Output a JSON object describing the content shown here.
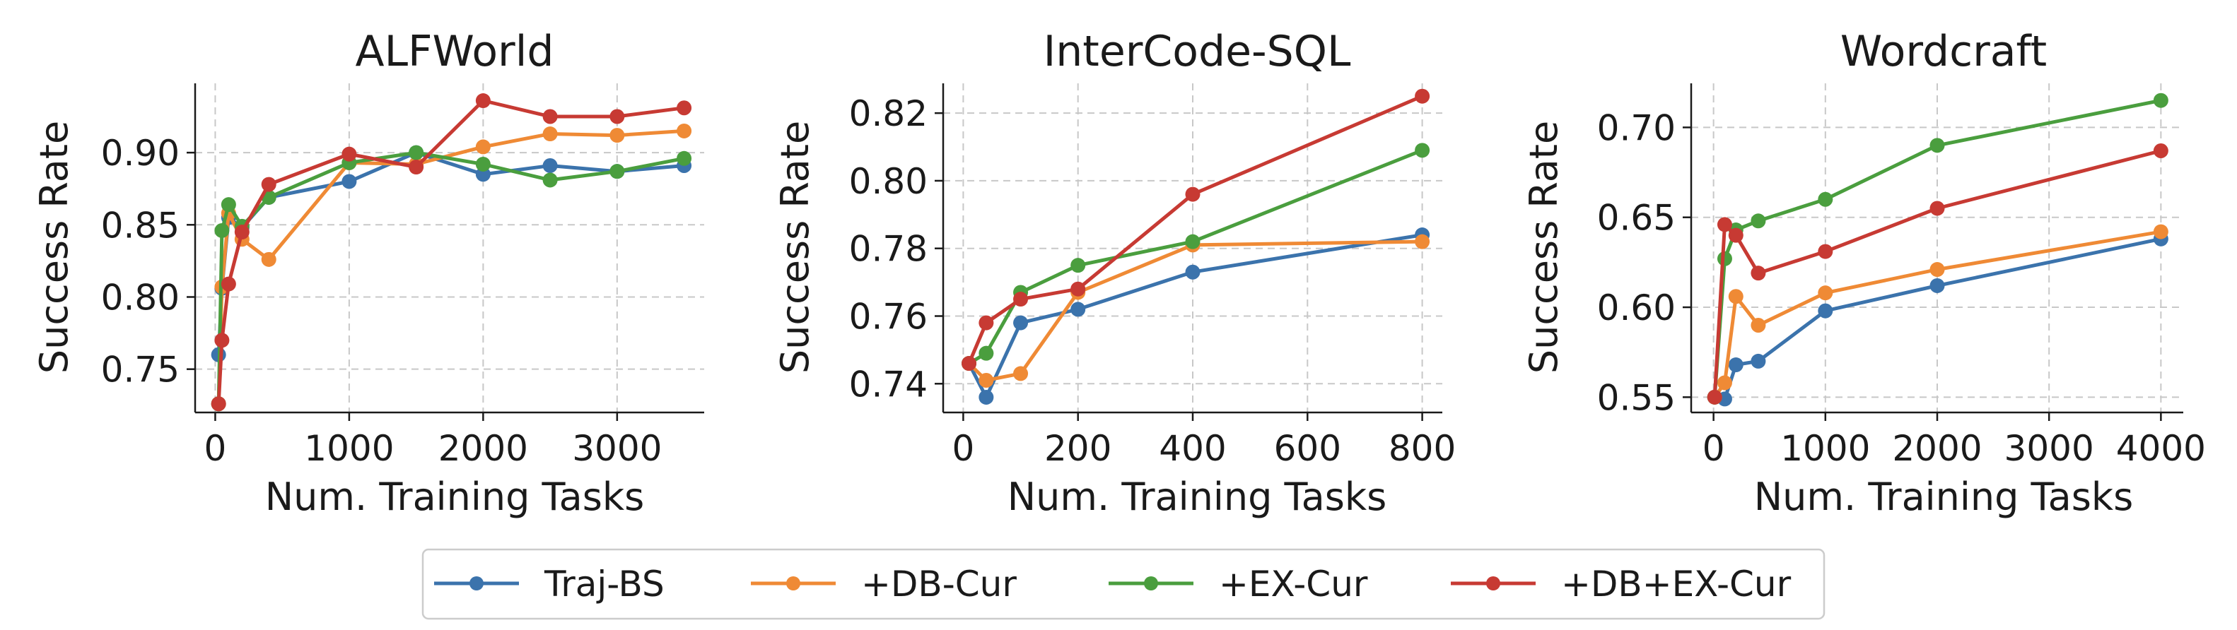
{
  "figure": {
    "legend_position": "bottom-center",
    "series_styles": [
      {
        "name": "Traj-BS",
        "color": "#3b73ac"
      },
      {
        "name": "+DB-Cur",
        "color": "#ef8a35"
      },
      {
        "name": "+EX-Cur",
        "color": "#4a9e3e"
      },
      {
        "name": "+DB+EX-Cur",
        "color": "#c73a33"
      }
    ]
  },
  "chart_data": [
    {
      "type": "line",
      "title": "ALFWorld",
      "xlabel": "Num. Training Tasks",
      "ylabel": "Success Rate",
      "xlim": [
        -150,
        3650
      ],
      "ylim": [
        0.72,
        0.948
      ],
      "xticks": [
        0,
        1000,
        2000,
        3000
      ],
      "xtick_labels": [
        "0",
        "1000",
        "2000",
        "3000"
      ],
      "yticks": [
        0.75,
        0.8,
        0.85,
        0.9
      ],
      "ytick_labels": [
        "0.75",
        "0.80",
        "0.85",
        "0.90"
      ],
      "grid": true,
      "series": [
        {
          "name": "Traj-BS",
          "x": [
            25,
            50,
            100,
            200,
            400,
            1000,
            1500,
            2000,
            2500,
            3000,
            3500
          ],
          "y": [
            0.76,
            0.806,
            0.855,
            0.848,
            0.869,
            0.88,
            0.9,
            0.885,
            0.891,
            0.887,
            0.891
          ]
        },
        {
          "name": "+DB-Cur",
          "x": [
            25,
            50,
            100,
            200,
            400,
            1000,
            1500,
            2000,
            2500,
            3000,
            3500
          ],
          "y": [
            0.726,
            0.807,
            0.858,
            0.84,
            0.826,
            0.893,
            0.892,
            0.904,
            0.913,
            0.912,
            0.915
          ]
        },
        {
          "name": "+EX-Cur",
          "x": [
            25,
            50,
            100,
            200,
            400,
            1000,
            1500,
            2000,
            2500,
            3000,
            3500
          ],
          "y": [
            0.726,
            0.846,
            0.864,
            0.849,
            0.869,
            0.893,
            0.9,
            0.892,
            0.881,
            0.887,
            0.896
          ]
        },
        {
          "name": "+DB+EX-Cur",
          "x": [
            25,
            50,
            100,
            200,
            400,
            1000,
            1500,
            2000,
            2500,
            3000,
            3500
          ],
          "y": [
            0.726,
            0.77,
            0.809,
            0.845,
            0.878,
            0.899,
            0.89,
            0.936,
            0.925,
            0.925,
            0.931
          ]
        }
      ]
    },
    {
      "type": "line",
      "title": "InterCode-SQL",
      "xlabel": "Num. Training Tasks",
      "ylabel": "Success Rate",
      "xlim": [
        -35,
        835
      ],
      "ylim": [
        0.7315,
        0.8288
      ],
      "xticks": [
        0,
        200,
        400,
        600,
        800
      ],
      "xtick_labels": [
        "0",
        "200",
        "400",
        "600",
        "800"
      ],
      "yticks": [
        0.74,
        0.76,
        0.78,
        0.8,
        0.82
      ],
      "ytick_labels": [
        "0.74",
        "0.76",
        "0.78",
        "0.80",
        "0.82"
      ],
      "grid": true,
      "series": [
        {
          "name": "Traj-BS",
          "x": [
            10,
            40,
            100,
            200,
            400,
            800
          ],
          "y": [
            0.746,
            0.736,
            0.758,
            0.762,
            0.773,
            0.784
          ]
        },
        {
          "name": "+DB-Cur",
          "x": [
            10,
            40,
            100,
            200,
            400,
            800
          ],
          "y": [
            0.746,
            0.741,
            0.743,
            0.767,
            0.781,
            0.782
          ]
        },
        {
          "name": "+EX-Cur",
          "x": [
            10,
            40,
            100,
            200,
            400,
            800
          ],
          "y": [
            0.746,
            0.749,
            0.767,
            0.775,
            0.782,
            0.809
          ]
        },
        {
          "name": "+DB+EX-Cur",
          "x": [
            10,
            40,
            100,
            200,
            400,
            800
          ],
          "y": [
            0.746,
            0.758,
            0.765,
            0.768,
            0.796,
            0.825
          ]
        }
      ]
    },
    {
      "type": "line",
      "title": "Wordcraft",
      "xlabel": "Num. Training Tasks",
      "ylabel": "Success Rate",
      "xlim": [
        -200,
        4200
      ],
      "ylim": [
        0.5415,
        0.7245
      ],
      "xticks": [
        0,
        1000,
        2000,
        3000,
        4000
      ],
      "xtick_labels": [
        "0",
        "1000",
        "2000",
        "3000",
        "4000"
      ],
      "yticks": [
        0.55,
        0.6,
        0.65,
        0.7
      ],
      "ytick_labels": [
        "0.55",
        "0.60",
        "0.65",
        "0.70"
      ],
      "grid": true,
      "series": [
        {
          "name": "Traj-BS",
          "x": [
            10,
            100,
            200,
            400,
            1000,
            2000,
            4000
          ],
          "y": [
            0.55,
            0.549,
            0.568,
            0.57,
            0.598,
            0.612,
            0.638
          ]
        },
        {
          "name": "+DB-Cur",
          "x": [
            10,
            100,
            200,
            400,
            1000,
            2000,
            4000
          ],
          "y": [
            0.55,
            0.558,
            0.606,
            0.59,
            0.608,
            0.621,
            0.642
          ]
        },
        {
          "name": "+EX-Cur",
          "x": [
            10,
            100,
            200,
            400,
            1000,
            2000,
            4000
          ],
          "y": [
            0.55,
            0.627,
            0.643,
            0.648,
            0.66,
            0.69,
            0.715
          ]
        },
        {
          "name": "+DB+EX-Cur",
          "x": [
            10,
            100,
            200,
            400,
            1000,
            2000,
            4000
          ],
          "y": [
            0.55,
            0.646,
            0.64,
            0.619,
            0.631,
            0.655,
            0.687
          ]
        }
      ]
    }
  ]
}
